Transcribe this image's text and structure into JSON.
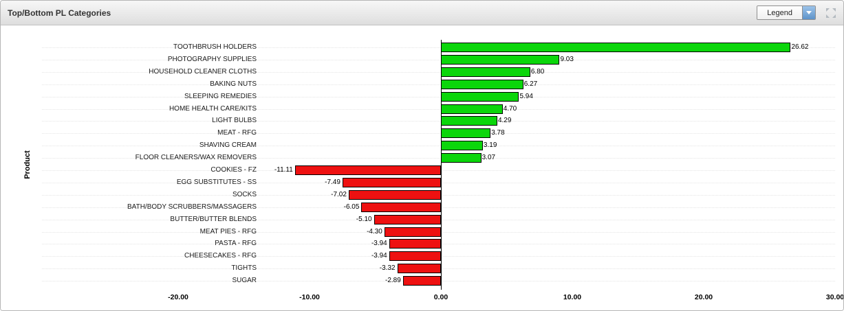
{
  "header": {
    "title": "Top/Bottom PL Categories",
    "legend_label": "Legend"
  },
  "chart_data": {
    "type": "bar",
    "orientation": "horizontal",
    "title": "Top/Bottom PL Categories",
    "xlabel": "",
    "ylabel": "Product",
    "legend_position": "collapsed-dropdown",
    "grid": "dotted-row-guides",
    "positive_color": "#0bd60b",
    "negative_color": "#ee1111",
    "bar_border_color": "#000000",
    "xlim": [
      -30.3,
      30.7
    ],
    "x_ticks": [
      -20,
      -10,
      0,
      10,
      20,
      30
    ],
    "x_tick_labels": [
      "-20.00",
      "-10.00",
      "0.00",
      "10.00",
      "20.00",
      "30.00"
    ],
    "points": [
      {
        "category": "TOOTHBRUSH HOLDERS",
        "value": 26.62,
        "label": "26.62"
      },
      {
        "category": "PHOTOGRAPHY SUPPLIES",
        "value": 9.03,
        "label": "9.03"
      },
      {
        "category": "HOUSEHOLD CLEANER CLOTHS",
        "value": 6.8,
        "label": "6.80"
      },
      {
        "category": "BAKING NUTS",
        "value": 6.27,
        "label": "6.27"
      },
      {
        "category": "SLEEPING REMEDIES",
        "value": 5.94,
        "label": "5.94"
      },
      {
        "category": "HOME HEALTH CARE/KITS",
        "value": 4.7,
        "label": "4.70"
      },
      {
        "category": "LIGHT BULBS",
        "value": 4.29,
        "label": "4.29"
      },
      {
        "category": "MEAT - RFG",
        "value": 3.78,
        "label": "3.78"
      },
      {
        "category": "SHAVING CREAM",
        "value": 3.19,
        "label": "3.19"
      },
      {
        "category": "FLOOR CLEANERS/WAX REMOVERS",
        "value": 3.07,
        "label": "3.07"
      },
      {
        "category": "COOKIES - FZ",
        "value": -11.11,
        "label": "-11.11"
      },
      {
        "category": "EGG SUBSTITUTES - SS",
        "value": -7.49,
        "label": "-7.49"
      },
      {
        "category": "SOCKS",
        "value": -7.02,
        "label": "-7.02"
      },
      {
        "category": "BATH/BODY SCRUBBERS/MASSAGERS",
        "value": -6.05,
        "label": "-6.05"
      },
      {
        "category": "BUTTER/BUTTER BLENDS",
        "value": -5.1,
        "label": "-5.10"
      },
      {
        "category": "MEAT PIES - RFG",
        "value": -4.3,
        "label": "-4.30"
      },
      {
        "category": "PASTA - RFG",
        "value": -3.94,
        "label": "-3.94"
      },
      {
        "category": "CHEESECAKES - RFG",
        "value": -3.94,
        "label": "-3.94"
      },
      {
        "category": "TIGHTS",
        "value": -3.32,
        "label": "-3.32"
      },
      {
        "category": "SUGAR",
        "value": -2.89,
        "label": "-2.89"
      }
    ]
  }
}
